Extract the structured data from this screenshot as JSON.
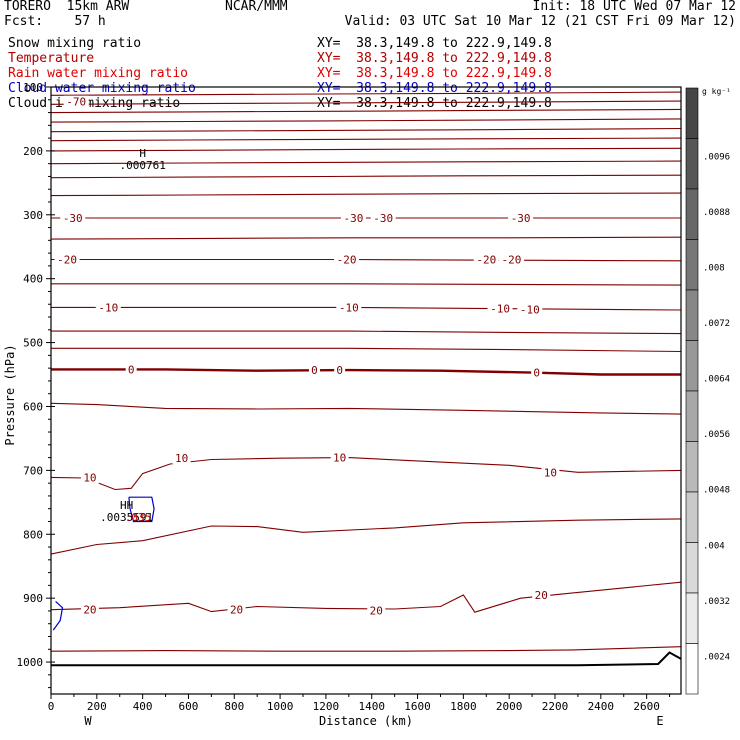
{
  "header": {
    "model": "TORERO  15km ARW",
    "center": "NCAR/MMM",
    "init": "Init: 18 UTC Wed 07 Mar 12",
    "fcst": "Fcst:    57 h",
    "valid": "Valid: 03 UTC Sat 10 Mar 12 (21 CST Fri 09 Mar 12)"
  },
  "fields": [
    {
      "name": "Snow mixing ratio",
      "xy": "XY=  38.3,149.8 to 222.9,149.8",
      "color": "#000000"
    },
    {
      "name": "Temperature",
      "xy": "XY=  38.3,149.8 to 222.9,149.8",
      "color": "#b00000"
    },
    {
      "name": "Rain water mixing ratio",
      "xy": "XY=  38.3,149.8 to 222.9,149.8",
      "color": "#e00000"
    },
    {
      "name": "Cloud water mixing ratio",
      "xy": "XY=  38.3,149.8 to 222.9,149.8",
      "color": "#0000c8"
    },
    {
      "name": "Cloud ice mixing ratio",
      "xy": "XY=  38.3,149.8 to 222.9,149.8",
      "color": "#000000"
    }
  ],
  "chart_data": {
    "type": "line",
    "xlabel": "Distance (km)",
    "ylabel": "Pressure (hPa)",
    "xlim": [
      0,
      2750
    ],
    "ylim": [
      1050,
      100
    ],
    "x_ticks": [
      "0",
      "200",
      "400",
      "600",
      "800",
      "1000",
      "1200",
      "1400",
      "1600",
      "1800",
      "2000",
      "2200",
      "2400",
      "2600"
    ],
    "y_ticks": [
      "100",
      "200",
      "300",
      "400",
      "500",
      "600",
      "700",
      "800",
      "900",
      "1000"
    ],
    "x_end_labels": {
      "left": "W",
      "right": "E"
    },
    "colors": {
      "temperature": "#800000",
      "cloud_water": "#0000c8",
      "rain": "#c00000",
      "snow": "#000000",
      "terrain": "#000000"
    },
    "temperature_contour_labels": [
      {
        "x": 110,
        "p": 123,
        "text": "-70"
      },
      {
        "x": 95,
        "p": 305,
        "text": "-30"
      },
      {
        "x": 1320,
        "p": 305,
        "text": "-30"
      },
      {
        "x": 1450,
        "p": 305,
        "text": "-30"
      },
      {
        "x": 2050,
        "p": 305,
        "text": "-30"
      },
      {
        "x": 70,
        "p": 370,
        "text": "-20"
      },
      {
        "x": 1290,
        "p": 370,
        "text": "-20"
      },
      {
        "x": 1900,
        "p": 370,
        "text": "-20"
      },
      {
        "x": 2010,
        "p": 370,
        "text": "-20"
      },
      {
        "x": 250,
        "p": 445,
        "text": "-10"
      },
      {
        "x": 1300,
        "p": 445,
        "text": "-10"
      },
      {
        "x": 1960,
        "p": 447,
        "text": "-10"
      },
      {
        "x": 2090,
        "p": 448,
        "text": "-10"
      },
      {
        "x": 350,
        "p": 542,
        "text": "0"
      },
      {
        "x": 1150,
        "p": 543,
        "text": "0"
      },
      {
        "x": 1260,
        "p": 543,
        "text": "0"
      },
      {
        "x": 2120,
        "p": 547,
        "text": "0"
      },
      {
        "x": 570,
        "p": 681,
        "text": "10"
      },
      {
        "x": 1260,
        "p": 680,
        "text": "10"
      },
      {
        "x": 170,
        "p": 711,
        "text": "10"
      },
      {
        "x": 2180,
        "p": 703,
        "text": "10"
      },
      {
        "x": 170,
        "p": 918,
        "text": "20"
      },
      {
        "x": 810,
        "p": 918,
        "text": "20"
      },
      {
        "x": 1420,
        "p": 919,
        "text": "20"
      },
      {
        "x": 2140,
        "p": 895,
        "text": "20"
      }
    ],
    "extrema": [
      {
        "x": 400,
        "p": 228,
        "mark": "H",
        "value": ".000761",
        "color": "#000000"
      },
      {
        "x": 330,
        "p": 779,
        "mark": "HH",
        "value": ".0035591",
        "color": "#000000"
      },
      {
        "x": 380,
        "p": 779,
        "value": ".035",
        "color": "#c00000"
      }
    ],
    "isotherms": [
      [
        [
          0,
          113
        ],
        [
          600,
          112
        ],
        [
          1200,
          111
        ],
        [
          1800,
          110
        ],
        [
          2750,
          108
        ]
      ],
      [
        [
          0,
          127
        ],
        [
          600,
          126
        ],
        [
          1200,
          125
        ],
        [
          1800,
          124
        ],
        [
          2750,
          122
        ]
      ],
      [
        [
          0,
          140
        ],
        [
          600,
          139
        ],
        [
          1200,
          138
        ],
        [
          1800,
          137
        ],
        [
          2750,
          135
        ]
      ],
      [
        [
          0,
          155
        ],
        [
          600,
          154
        ],
        [
          1200,
          153
        ],
        [
          1800,
          152
        ],
        [
          2750,
          150
        ]
      ],
      [
        [
          0,
          170
        ],
        [
          600,
          169
        ],
        [
          1200,
          168
        ],
        [
          1800,
          167
        ],
        [
          2750,
          165
        ]
      ],
      [
        [
          0,
          184
        ],
        [
          600,
          183
        ],
        [
          1200,
          182
        ],
        [
          1800,
          181
        ],
        [
          2750,
          180
        ]
      ],
      [
        [
          0,
          200
        ],
        [
          600,
          199
        ],
        [
          1200,
          198
        ],
        [
          1800,
          197
        ],
        [
          2750,
          196
        ]
      ],
      [
        [
          0,
          220
        ],
        [
          600,
          219
        ],
        [
          1200,
          218
        ],
        [
          1800,
          217
        ],
        [
          2750,
          216
        ]
      ],
      [
        [
          0,
          242
        ],
        [
          600,
          241
        ],
        [
          1200,
          240
        ],
        [
          1800,
          239
        ],
        [
          2750,
          238
        ]
      ],
      [
        [
          0,
          270
        ],
        [
          600,
          269
        ],
        [
          1200,
          268
        ],
        [
          1800,
          267
        ],
        [
          2750,
          266
        ]
      ],
      [
        [
          0,
          305
        ],
        [
          700,
          305
        ],
        [
          1300,
          305
        ],
        [
          2000,
          305
        ],
        [
          2750,
          305
        ]
      ],
      [
        [
          0,
          338
        ],
        [
          700,
          337
        ],
        [
          1300,
          336
        ],
        [
          2000,
          336
        ],
        [
          2750,
          335
        ]
      ],
      [
        [
          0,
          370
        ],
        [
          700,
          370
        ],
        [
          1300,
          370
        ],
        [
          1950,
          371
        ],
        [
          2750,
          372
        ]
      ],
      [
        [
          0,
          408
        ],
        [
          700,
          408
        ],
        [
          1300,
          408
        ],
        [
          2000,
          409
        ],
        [
          2750,
          410
        ]
      ],
      [
        [
          0,
          445
        ],
        [
          700,
          445
        ],
        [
          1300,
          445
        ],
        [
          2000,
          447
        ],
        [
          2750,
          449
        ]
      ],
      [
        [
          0,
          482
        ],
        [
          700,
          482
        ],
        [
          1300,
          482
        ],
        [
          2000,
          484
        ],
        [
          2750,
          486
        ]
      ],
      [
        [
          0,
          509
        ],
        [
          700,
          509
        ],
        [
          1300,
          509
        ],
        [
          2000,
          511
        ],
        [
          2750,
          514
        ]
      ],
      [
        [
          0,
          595
        ],
        [
          200,
          597
        ],
        [
          500,
          603
        ],
        [
          900,
          604
        ],
        [
          1300,
          603
        ],
        [
          1800,
          606
        ],
        [
          2400,
          610
        ],
        [
          2750,
          612
        ]
      ],
      [
        [
          0,
          711
        ],
        [
          150,
          712
        ],
        [
          280,
          730
        ],
        [
          350,
          728
        ],
        [
          400,
          705
        ],
        [
          520,
          690
        ],
        [
          700,
          683
        ],
        [
          1000,
          681
        ],
        [
          1300,
          680
        ],
        [
          1700,
          687
        ],
        [
          2000,
          692
        ],
        [
          2300,
          703
        ],
        [
          2750,
          700
        ]
      ],
      [
        [
          0,
          831
        ],
        [
          200,
          816
        ],
        [
          400,
          810
        ],
        [
          700,
          787
        ],
        [
          900,
          788
        ],
        [
          1100,
          797
        ],
        [
          1500,
          790
        ],
        [
          1800,
          782
        ],
        [
          2300,
          778
        ],
        [
          2750,
          776
        ]
      ],
      [
        [
          0,
          918
        ],
        [
          300,
          915
        ],
        [
          600,
          908
        ],
        [
          700,
          921
        ],
        [
          900,
          913
        ],
        [
          1200,
          916
        ],
        [
          1500,
          917
        ],
        [
          1700,
          913
        ],
        [
          1800,
          895
        ],
        [
          1850,
          922
        ],
        [
          2050,
          900
        ],
        [
          2300,
          891
        ],
        [
          2750,
          875
        ]
      ],
      [
        [
          0,
          983
        ],
        [
          500,
          982
        ],
        [
          1000,
          983
        ],
        [
          1500,
          983
        ],
        [
          2000,
          982
        ],
        [
          2280,
          981
        ],
        [
          2750,
          976
        ]
      ]
    ],
    "freezing_level": [
      [
        0,
        542
      ],
      [
        500,
        542
      ],
      [
        900,
        544
      ],
      [
        1300,
        543
      ],
      [
        1700,
        544
      ],
      [
        2100,
        547
      ],
      [
        2400,
        550
      ],
      [
        2750,
        550
      ]
    ],
    "cloud_water_contours": [
      [
        [
          340,
          742
        ],
        [
          440,
          742
        ],
        [
          450,
          760
        ],
        [
          440,
          780
        ],
        [
          360,
          780
        ],
        [
          345,
          760
        ],
        [
          340,
          742
        ]
      ],
      [
        [
          20,
          905
        ],
        [
          50,
          915
        ],
        [
          40,
          935
        ],
        [
          10,
          950
        ]
      ]
    ],
    "terrain": [
      [
        0,
        1005
      ],
      [
        2300,
        1005
      ],
      [
        2650,
        1003
      ],
      [
        2700,
        985
      ],
      [
        2750,
        995
      ]
    ]
  }
}
